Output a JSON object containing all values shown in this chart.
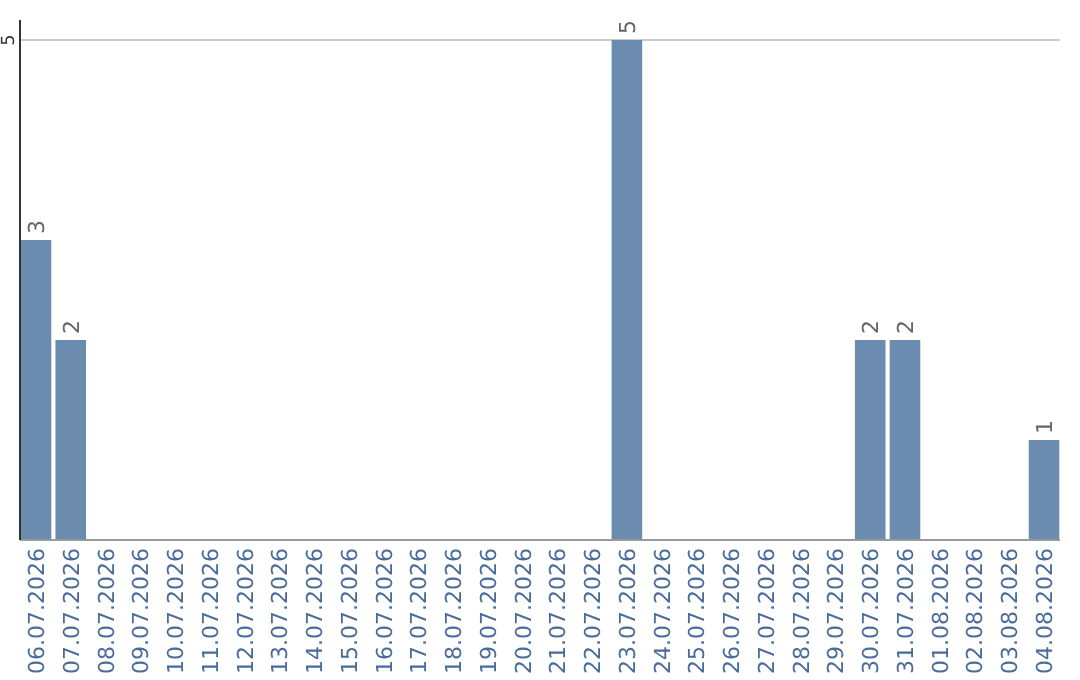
{
  "chart_data": {
    "type": "bar",
    "categories": [
      "06.07.2026",
      "07.07.2026",
      "08.07.2026",
      "09.07.2026",
      "10.07.2026",
      "11.07.2026",
      "12.07.2026",
      "13.07.2026",
      "14.07.2026",
      "15.07.2026",
      "16.07.2026",
      "17.07.2026",
      "18.07.2026",
      "19.07.2026",
      "20.07.2026",
      "21.07.2026",
      "22.07.2026",
      "23.07.2026",
      "24.07.2026",
      "25.07.2026",
      "26.07.2026",
      "27.07.2026",
      "28.07.2026",
      "29.07.2026",
      "30.07.2026",
      "31.07.2026",
      "01.08.2026",
      "02.08.2026",
      "03.08.2026",
      "04.08.2026"
    ],
    "values": [
      3,
      2,
      0,
      0,
      0,
      0,
      0,
      0,
      0,
      0,
      0,
      0,
      0,
      0,
      0,
      0,
      0,
      5,
      0,
      0,
      0,
      0,
      0,
      0,
      2,
      2,
      0,
      0,
      0,
      1
    ],
    "value_labels": [
      "3",
      "2",
      null,
      null,
      null,
      null,
      null,
      null,
      null,
      null,
      null,
      null,
      null,
      null,
      null,
      null,
      null,
      "5",
      null,
      null,
      null,
      null,
      null,
      null,
      "2",
      "2",
      null,
      null,
      null,
      "1"
    ],
    "color": "#6b8cae",
    "ylim": [
      0,
      5.2
    ],
    "yticks": [
      5
    ],
    "grid": "y"
  }
}
